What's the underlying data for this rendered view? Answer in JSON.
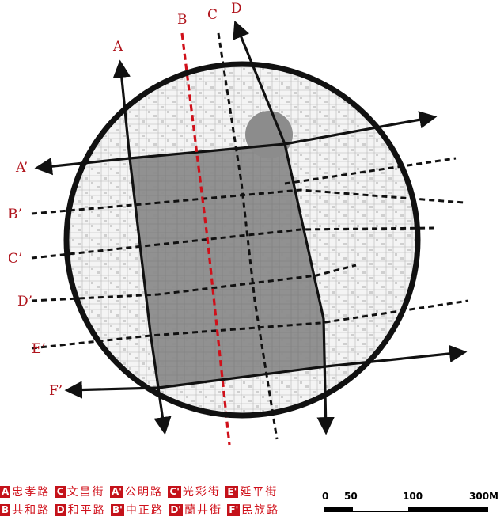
{
  "map": {
    "labels": {
      "A": "A",
      "B": "B",
      "C": "C",
      "D": "D",
      "A_prime": "A’",
      "B_prime": "B’",
      "C_prime": "C’",
      "D_prime": "D’",
      "E_prime": "E’",
      "F_prime": "F’"
    },
    "colors": {
      "study_area": "#8c8c8c",
      "highlight_road": "#d0101a",
      "label_text": "#b0141c",
      "boundary": "#111111"
    }
  },
  "legend": {
    "row1": [
      {
        "key": "A",
        "road": "忠孝路"
      },
      {
        "key": "C",
        "road": "文昌街"
      },
      {
        "key": "A'",
        "road": "公明路"
      },
      {
        "key": "C'",
        "road": "光彩街"
      },
      {
        "key": "E'",
        "road": "延平街"
      }
    ],
    "row2": [
      {
        "key": "B",
        "road": "共和路"
      },
      {
        "key": "D",
        "road": "和平路"
      },
      {
        "key": "B'",
        "road": "中正路"
      },
      {
        "key": "D'",
        "road": "蘭井街"
      },
      {
        "key": "F'",
        "road": "民族路"
      }
    ]
  },
  "scale": {
    "ticks": [
      "0",
      "50",
      "100",
      "300M"
    ]
  }
}
